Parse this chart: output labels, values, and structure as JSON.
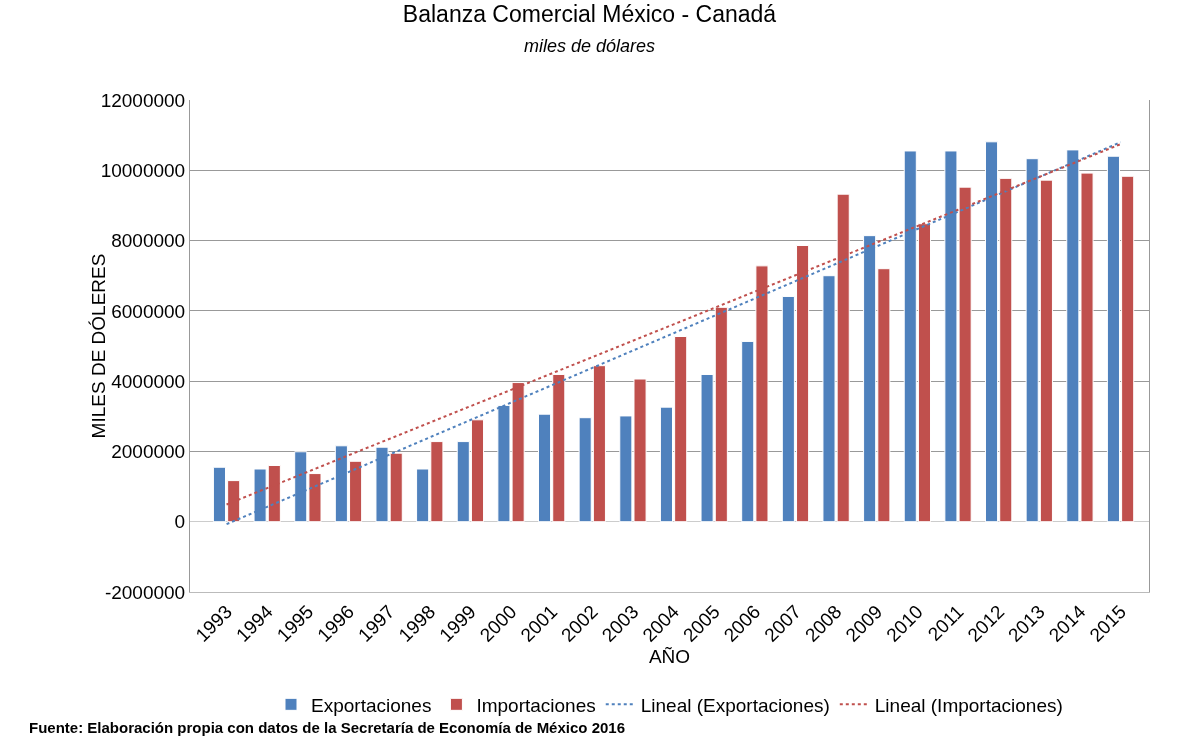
{
  "chart_data": {
    "type": "bar",
    "title": "Balanza Comercial México - Canadá",
    "subtitle": "miles de dólares",
    "xlabel": "AÑO",
    "ylabel": "MILES DE DÓLERES",
    "categories": [
      "1993",
      "1994",
      "1995",
      "1996",
      "1997",
      "1998",
      "1999",
      "2000",
      "2001",
      "2002",
      "2003",
      "2004",
      "2005",
      "2006",
      "2007",
      "2008",
      "2009",
      "2010",
      "2011",
      "2012",
      "2013",
      "2014",
      "2015"
    ],
    "series": [
      {
        "name": "Exportaciones",
        "color": "#4f81bd",
        "values": [
          1550000,
          1500000,
          1990000,
          2160000,
          2120000,
          1500000,
          2280000,
          3310000,
          3060000,
          2960000,
          3010000,
          3260000,
          4190000,
          5130000,
          6410000,
          7000000,
          8140000,
          10550000,
          10550000,
          10810000,
          10330000,
          10580000,
          10400000
        ]
      },
      {
        "name": "Importaciones",
        "color": "#c0504d",
        "values": [
          1170000,
          1600000,
          1370000,
          1720000,
          1950000,
          2280000,
          2900000,
          3960000,
          4190000,
          4440000,
          4060000,
          5270000,
          6100000,
          7280000,
          7860000,
          9320000,
          7200000,
          8480000,
          9520000,
          9770000,
          9720000,
          9920000,
          9830000
        ]
      },
      {
        "name": "Lineal (Exportaciones)",
        "type": "line",
        "line_style": "dotted",
        "color": "#4f81bd",
        "values": [
          -70000,
          424000,
          918000,
          1412000,
          1906000,
          2400000,
          2894000,
          3388000,
          3882000,
          4376000,
          4870000,
          5364000,
          5858000,
          6352000,
          6846000,
          7340000,
          7834000,
          8328000,
          8822000,
          9316000,
          9810000,
          10304000,
          10798000
        ]
      },
      {
        "name": "Lineal (Importaciones)",
        "type": "line",
        "line_style": "dotted",
        "color": "#c0504d",
        "values": [
          490000,
          956000,
          1422000,
          1888000,
          2354000,
          2820000,
          3286000,
          3752000,
          4218000,
          4684000,
          5150000,
          5616000,
          6082000,
          6548000,
          7014000,
          7480000,
          7946000,
          8412000,
          8878000,
          9344000,
          9810000,
          10276000,
          10742000
        ]
      }
    ],
    "ylim": [
      -2000000,
      12000000
    ],
    "yticks": [
      -2000000,
      0,
      2000000,
      4000000,
      6000000,
      8000000,
      10000000,
      12000000
    ],
    "grid": "y",
    "legend": "bottom",
    "annotations": [
      "Fuente: Elaboración propia con datos de la Secretaría de Economía de México 2016"
    ]
  }
}
